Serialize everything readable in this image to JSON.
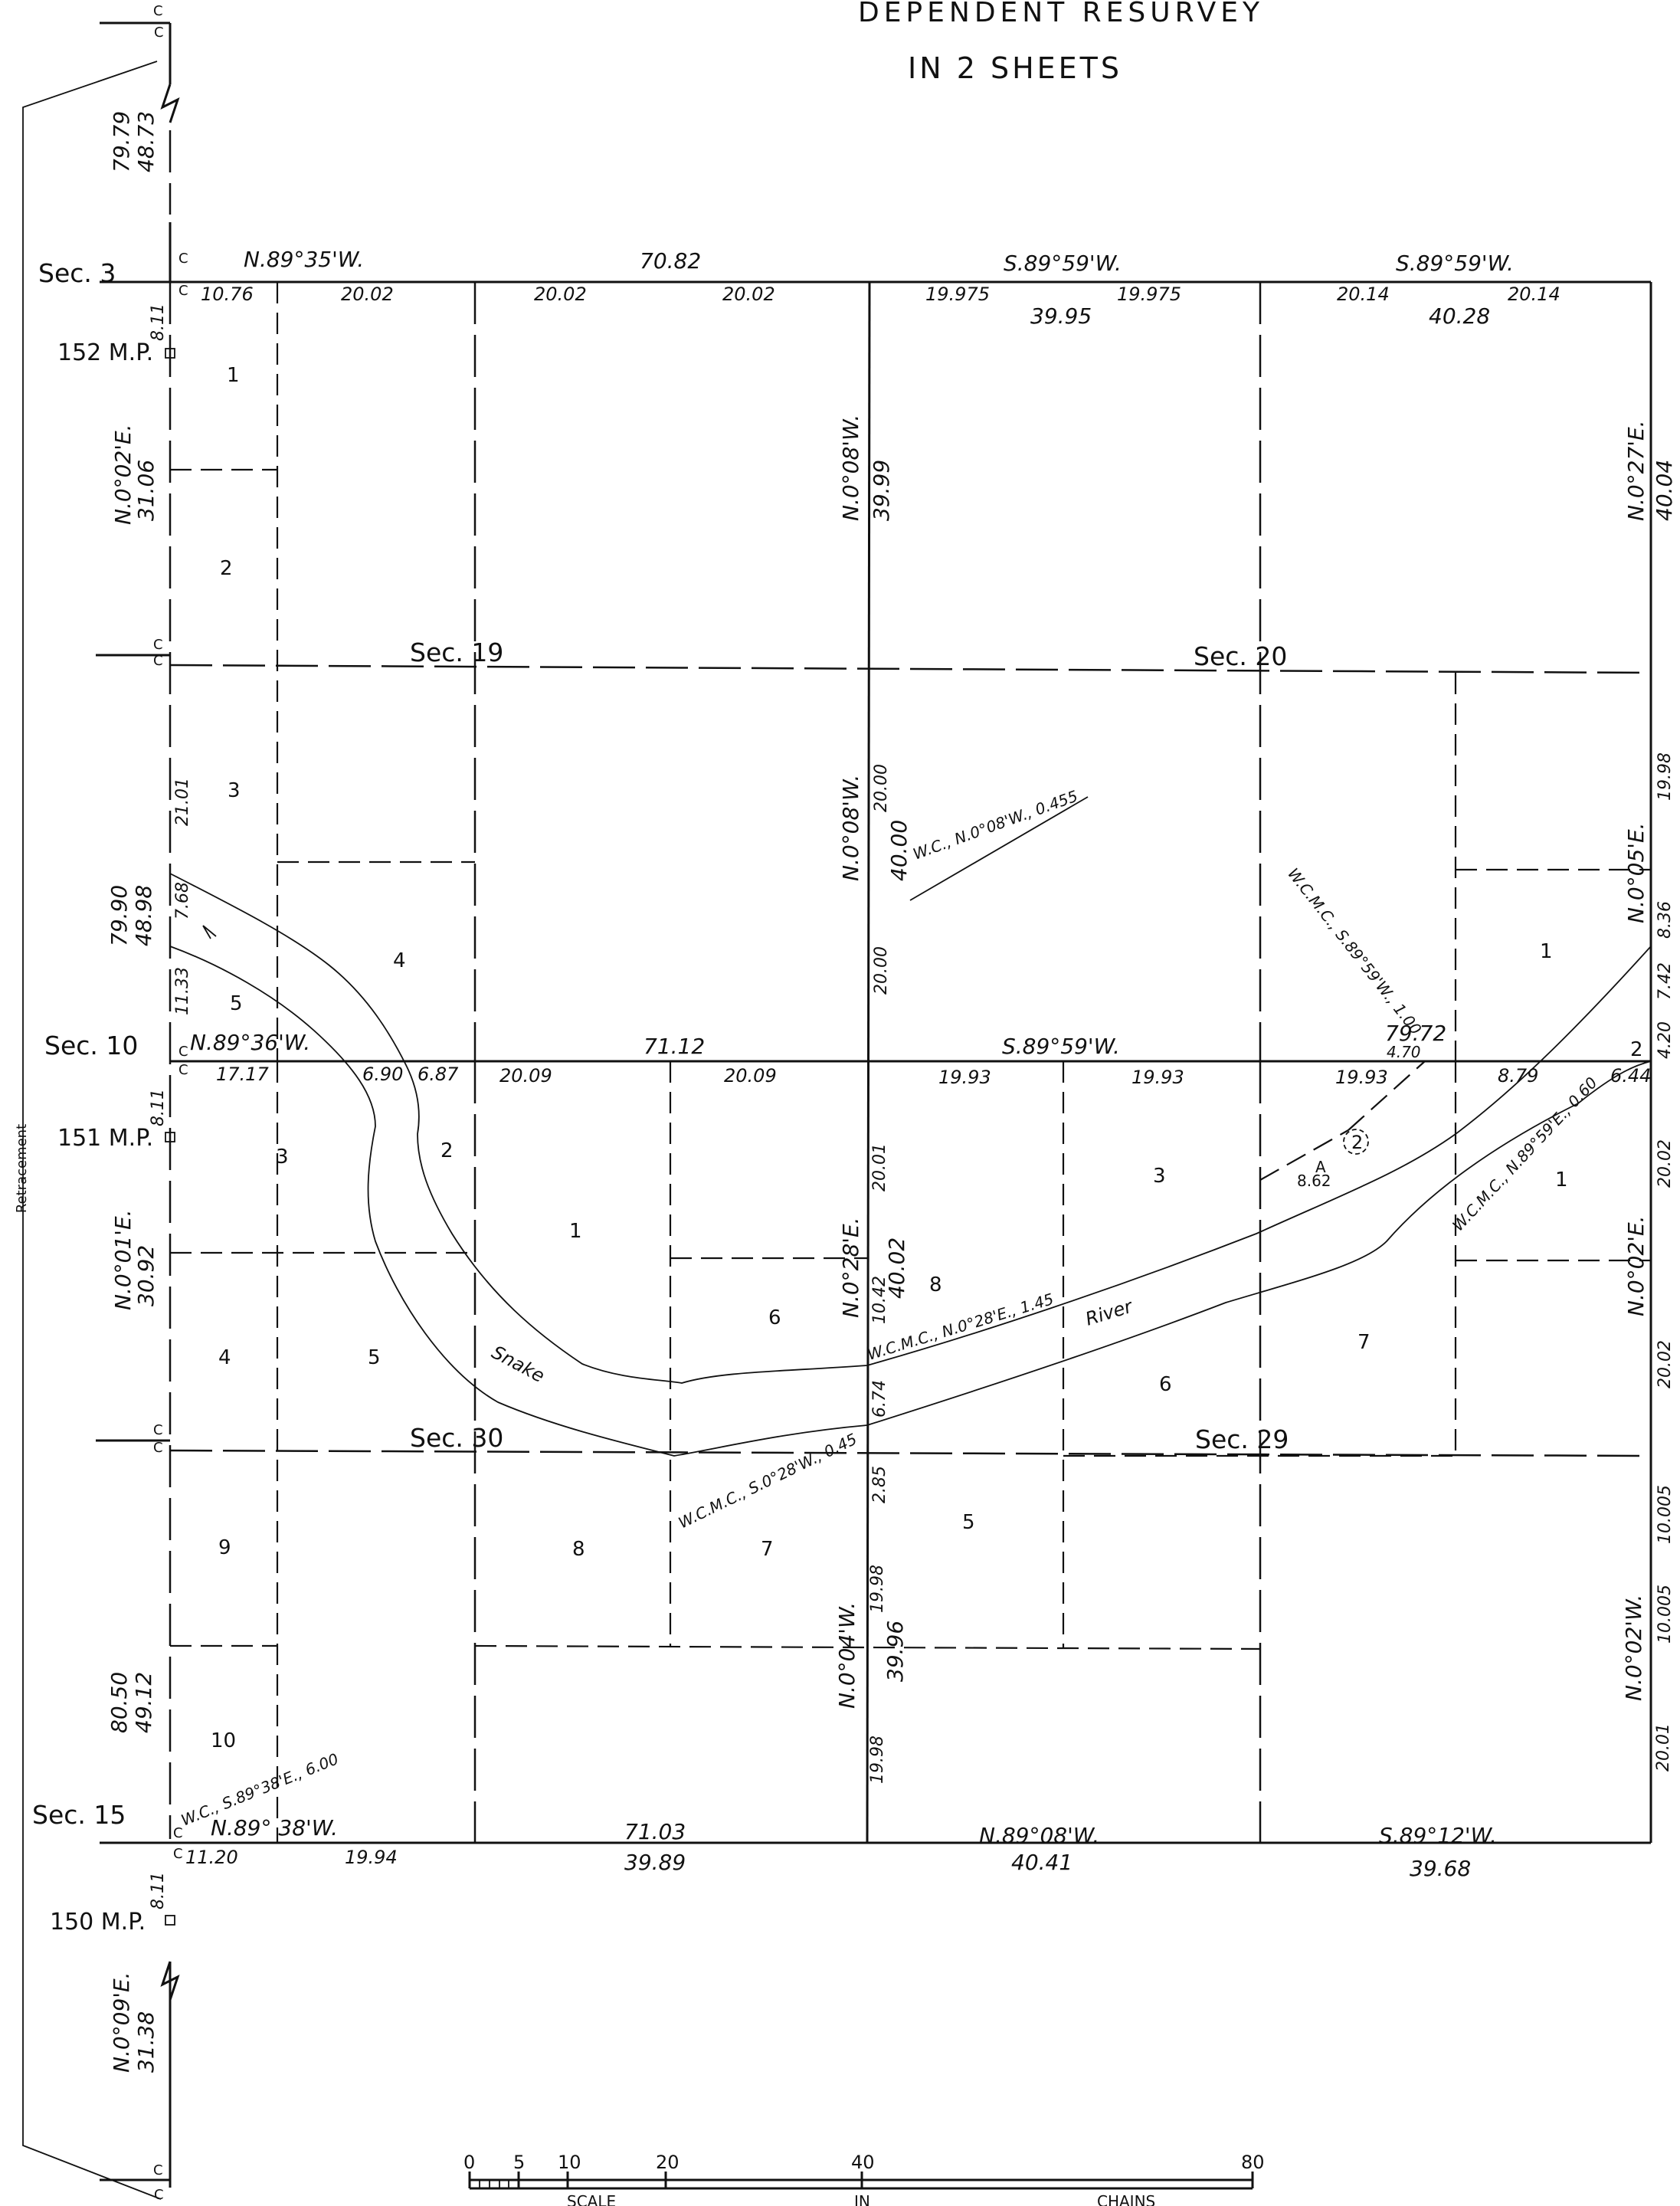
{
  "header": {
    "title": "DEPENDENT RESURVEY",
    "subtitle": "IN 2 SHEETS"
  },
  "corner_marks": {
    "c": "C"
  },
  "sections": {
    "sec3": "Sec. 3",
    "sec10": "Sec. 10",
    "sec15": "Sec. 15",
    "sec19": "Sec. 19",
    "sec20": "Sec. 20",
    "sec29": "Sec. 29",
    "sec30": "Sec. 30"
  },
  "mile_posts": {
    "mp152": "152 M.P.",
    "mp151": "151 M.P.",
    "mp150": "150 M.P."
  },
  "side_label": "Retracement",
  "river": {
    "word1": "Snake",
    "word2": "River"
  },
  "bearings": {
    "top_left": "N.89°35'W.",
    "top_mid": "S.89°59'W.",
    "top_right": "S.89°59'W.",
    "mid_left": "N.89°36'W.",
    "mid_mid": "S.89°59'W.",
    "bot_left": "N.89° 38'W.",
    "bot_mid": "N.89°08'W.",
    "bot_right": "S.89°12'W.",
    "west_upper": "N.0°02'E.",
    "west_lower": "N.0°01'E.",
    "west_bottom": "N.0°09'E.",
    "center_upper": "N.0°08'W.",
    "center_mid": "N.0°08'W.",
    "center_lower": "N.0°28'E.",
    "center_bottom": "N.0°04'W.",
    "east_upper": "N.0°27'E.",
    "east_mid": "N.0°05'E.",
    "east_lower": "N.0°02'E.",
    "east_bottom": "N.0°02'W."
  },
  "distances": {
    "top_total_left": "70.82",
    "top_10_76": "10.76",
    "top_20_02_a": "20.02",
    "top_20_02_b": "20.02",
    "top_20_02_c": "20.02",
    "top_19_975_a": "19.975",
    "top_19_975_b": "19.975",
    "top_39_95": "39.95",
    "top_20_14_a": "20.14",
    "top_20_14_b": "20.14",
    "top_40_28": "40.28",
    "mid_71_12": "71.12",
    "mid_17_17": "17.17",
    "mid_6_90": "6.90",
    "mid_6_87": "6.87",
    "mid_20_09_a": "20.09",
    "mid_20_09_b": "20.09",
    "mid_19_93_a": "19.93",
    "mid_19_93_b": "19.93",
    "mid_19_93_c": "19.93",
    "mid_79_72": "79.72",
    "mid_4_70": "4.70",
    "mid_8_79": "8.79",
    "mid_6_44": "6.44",
    "bot_71_03": "71.03",
    "bot_11_20": "11.20",
    "bot_19_94": "19.94",
    "bot_39_89": "39.89",
    "bot_40_41": "40.41",
    "bot_39_68": "39.68",
    "w_top_79_79": "79.79",
    "w_top_48_73": "48.73",
    "w_8_11_a": "8.11",
    "w_31_06": "31.06",
    "w_21_01": "21.01",
    "w_7_68": "7.68",
    "w_11_33": "11.33",
    "w_79_90": "79.90",
    "w_48_98": "48.98",
    "w_8_11_b": "8.11",
    "w_30_92": "30.92",
    "w_80_50": "80.50",
    "w_49_12": "49.12",
    "w_8_11_c": "8.11",
    "w_31_38": "31.38",
    "c_39_99": "39.99",
    "c_20_00_a": "20.00",
    "c_40_00": "40.00",
    "c_20_00_b": "20.00",
    "c_20_01": "20.01",
    "c_40_02": "40.02",
    "c_10_42": "10.42",
    "c_6_74": "6.74",
    "c_2_85": "2.85",
    "c_19_98_a": "19.98",
    "c_39_96": "39.96",
    "c_19_98_b": "19.98",
    "e_40_04": "40.04",
    "e_19_98": "19.98",
    "e_8_36": "8.36",
    "e_7_42": "7.42",
    "e_4_20": "4.20",
    "e_20_02_a": "20.02",
    "e_20_02_b": "20.02",
    "e_10_005_a": "10.005",
    "e_10_005_b": "10.005",
    "e_20_01": "20.01",
    "a_8_62": "8.62"
  },
  "witness_corners": {
    "wc1": "W.C., N.0°08'W., 0.455",
    "wc2": "W.C.M.C., S.89°59'W., 1.00",
    "wc3": "W.C.M.C., N.89°59'E., 0.60",
    "wc4": "W.C.M.C., N.0°28'E., 1.45",
    "wc5": "W.C.M.C., S.0°28'W., 0.45",
    "wc6": "W.C., S.89°38'E., 6.00"
  },
  "point_a": {
    "letter": "A",
    "circle": "2"
  },
  "lots": {
    "s19_1": "1",
    "s19_2": "2",
    "s19_3": "3",
    "s19_4": "4",
    "s19_5": "5",
    "s20_1": "1",
    "s20_2": "2",
    "s30_1": "1",
    "s30_2": "2",
    "s30_3": "3",
    "s30_4": "4",
    "s30_5": "5",
    "s30_6": "6",
    "s30_7": "7",
    "s30_8": "8",
    "s30_9": "9",
    "s30_10": "10",
    "s29_1": "1",
    "s29_3": "3",
    "s29_5": "5",
    "s29_6": "6",
    "s29_7": "7",
    "s29_8": "8"
  },
  "scale": {
    "t0": "0",
    "t5": "5",
    "t10": "10",
    "t20": "20",
    "t40": "40",
    "t80": "80",
    "w1": "SCALE",
    "w2": "IN",
    "w3": "CHAINS"
  }
}
